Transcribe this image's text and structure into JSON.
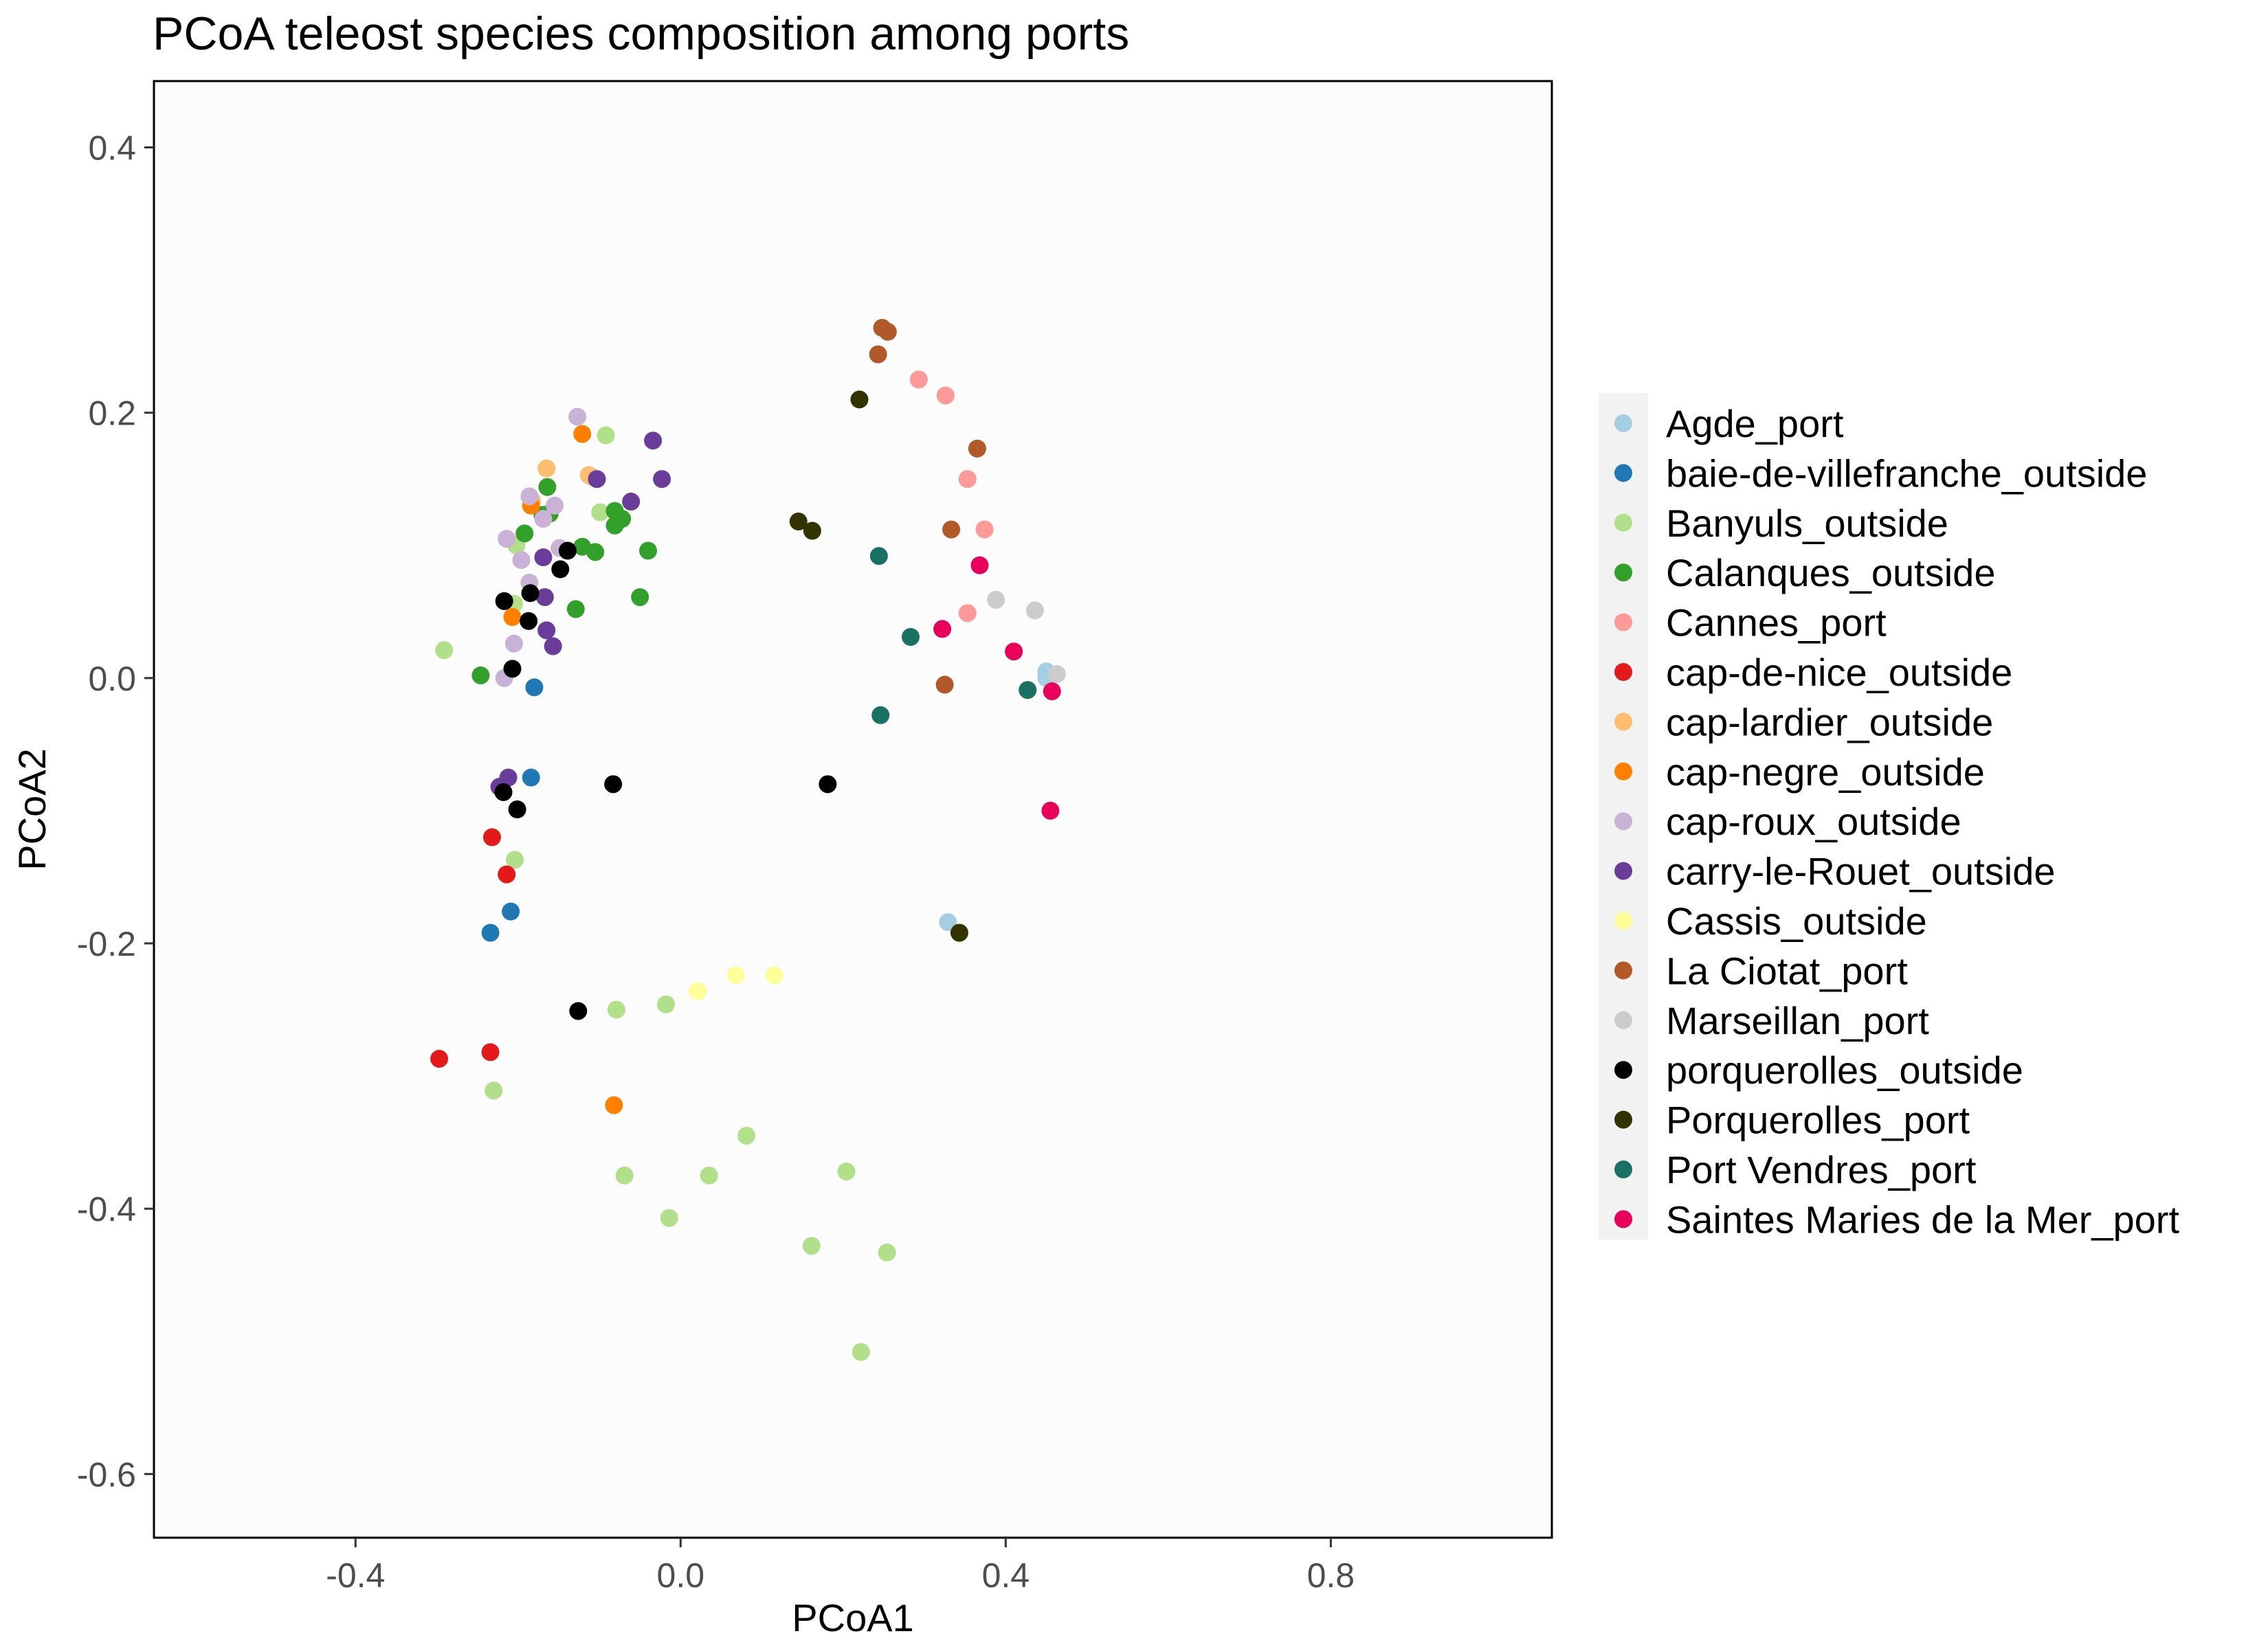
{
  "chart_data": {
    "type": "scatter",
    "title": "PCoA teleost species composition among ports",
    "xlabel": "PCoA1",
    "ylabel": "PCoA2",
    "xlim": [
      -0.648,
      1.072
    ],
    "ylim": [
      -0.648,
      0.45
    ],
    "x_ticks": [
      -0.4,
      0.0,
      0.4,
      0.8
    ],
    "x_tick_labels": [
      "-0.4",
      "0.0",
      "0.4",
      "0.8"
    ],
    "y_ticks": [
      0.4,
      0.2,
      0.0,
      -0.2,
      -0.4,
      -0.6
    ],
    "y_tick_labels": [
      "0.4",
      "0.2",
      "0.0",
      "-0.2",
      "-0.4",
      "-0.6"
    ],
    "grid": false,
    "legend_position": "right",
    "series": [
      {
        "name": "Agde_port",
        "color": "#a6cee3",
        "points": [
          [
            0.329,
            -0.184
          ],
          [
            0.45,
            0.005
          ],
          [
            0.45,
            0.0
          ]
        ]
      },
      {
        "name": "baie-de-villefranche_outside",
        "color": "#1f78b4",
        "points": [
          [
            -0.18,
            -0.007
          ],
          [
            -0.184,
            -0.075
          ],
          [
            -0.234,
            -0.192
          ],
          [
            -0.209,
            -0.176
          ]
        ]
      },
      {
        "name": "Banyuls_outside",
        "color": "#b2df8a",
        "points": [
          [
            -0.291,
            0.021
          ],
          [
            -0.205,
            0.056
          ],
          [
            -0.202,
            0.1
          ],
          [
            -0.11,
            0.152
          ],
          [
            -0.099,
            0.125
          ],
          [
            -0.092,
            0.183
          ],
          [
            -0.204,
            -0.137
          ],
          [
            -0.23,
            -0.311
          ],
          [
            -0.079,
            -0.25
          ],
          [
            -0.018,
            -0.246
          ],
          [
            -0.069,
            -0.375
          ],
          [
            -0.014,
            -0.407
          ],
          [
            0.035,
            -0.375
          ],
          [
            0.081,
            -0.345
          ],
          [
            0.204,
            -0.372
          ],
          [
            0.161,
            -0.428
          ],
          [
            0.254,
            -0.433
          ],
          [
            0.222,
            -0.508
          ]
        ]
      },
      {
        "name": "Calanques_outside",
        "color": "#33a02c",
        "points": [
          [
            -0.246,
            0.002
          ],
          [
            -0.192,
            0.109
          ],
          [
            -0.164,
            0.144
          ],
          [
            -0.17,
            0.123
          ],
          [
            -0.161,
            0.124
          ],
          [
            -0.121,
            0.099
          ],
          [
            -0.105,
            0.095
          ],
          [
            -0.081,
            0.126
          ],
          [
            -0.081,
            0.115
          ],
          [
            -0.072,
            0.12
          ],
          [
            -0.04,
            0.096
          ],
          [
            -0.05,
            0.061
          ],
          [
            -0.129,
            0.052
          ]
        ]
      },
      {
        "name": "Cannes_port",
        "color": "#fb9a99",
        "points": [
          [
            0.293,
            0.225
          ],
          [
            0.326,
            0.213
          ],
          [
            0.353,
            0.15
          ],
          [
            0.374,
            0.112
          ],
          [
            0.353,
            0.049
          ]
        ]
      },
      {
        "name": "cap-de-nice_outside",
        "color": "#e31a1c",
        "points": [
          [
            -0.232,
            -0.12
          ],
          [
            -0.214,
            -0.148
          ],
          [
            -0.297,
            -0.287
          ],
          [
            -0.234,
            -0.282
          ]
        ]
      },
      {
        "name": "cap-lardier_outside",
        "color": "#fdbf6f",
        "points": [
          [
            -0.165,
            0.158
          ],
          [
            -0.183,
            0.134
          ],
          [
            -0.113,
            0.153
          ]
        ]
      },
      {
        "name": "cap-negre_outside",
        "color": "#ff7f00",
        "points": [
          [
            -0.121,
            0.184
          ],
          [
            -0.184,
            0.13
          ],
          [
            -0.207,
            0.046
          ],
          [
            -0.082,
            -0.322
          ]
        ]
      },
      {
        "name": "cap-roux_outside",
        "color": "#cab2d6",
        "points": [
          [
            -0.127,
            0.197
          ],
          [
            -0.186,
            0.137
          ],
          [
            -0.169,
            0.12
          ],
          [
            -0.155,
            0.13
          ],
          [
            -0.214,
            0.105
          ],
          [
            -0.196,
            0.089
          ],
          [
            -0.149,
            0.098
          ],
          [
            -0.186,
            0.072
          ],
          [
            -0.217,
            0.0
          ],
          [
            -0.205,
            0.026
          ]
        ]
      },
      {
        "name": "carry-le-Rouet_outside",
        "color": "#6a3d9a",
        "points": [
          [
            -0.103,
            0.15
          ],
          [
            -0.061,
            0.133
          ],
          [
            -0.034,
            0.179
          ],
          [
            -0.023,
            0.15
          ],
          [
            -0.169,
            0.091
          ],
          [
            -0.167,
            0.061
          ],
          [
            -0.165,
            0.036
          ],
          [
            -0.157,
            0.024
          ],
          [
            -0.212,
            -0.075
          ],
          [
            -0.223,
            -0.082
          ]
        ]
      },
      {
        "name": "Cassis_outside",
        "color": "#ffff99",
        "points": [
          [
            0.021,
            -0.236
          ],
          [
            0.068,
            -0.224
          ],
          [
            0.115,
            -0.224
          ]
        ]
      },
      {
        "name": "La Ciotat_port",
        "color": "#b15928",
        "points": [
          [
            0.248,
            0.264
          ],
          [
            0.255,
            0.261
          ],
          [
            0.243,
            0.244
          ],
          [
            0.365,
            0.173
          ],
          [
            0.333,
            0.112
          ],
          [
            0.325,
            -0.005
          ]
        ]
      },
      {
        "name": "Marseillan_port",
        "color": "#cccccc",
        "points": [
          [
            0.388,
            0.059
          ],
          [
            0.436,
            0.051
          ],
          [
            0.463,
            0.003
          ]
        ]
      },
      {
        "name": "porquerolles_outside",
        "color": "#000000",
        "points": [
          [
            -0.217,
            0.058
          ],
          [
            -0.185,
            0.064
          ],
          [
            -0.187,
            0.043
          ],
          [
            -0.148,
            0.082
          ],
          [
            -0.139,
            0.096
          ],
          [
            -0.207,
            0.007
          ],
          [
            -0.218,
            -0.086
          ],
          [
            -0.201,
            -0.099
          ],
          [
            -0.083,
            -0.08
          ],
          [
            -0.126,
            -0.251
          ],
          [
            0.181,
            -0.08
          ]
        ]
      },
      {
        "name": "Porquerolles_port",
        "color": "#333300",
        "points": [
          [
            0.22,
            0.21
          ],
          [
            0.145,
            0.118
          ],
          [
            0.162,
            0.111
          ],
          [
            0.343,
            -0.192
          ]
        ]
      },
      {
        "name": "Port Vendres_port",
        "color": "#1b7064",
        "points": [
          [
            0.244,
            0.092
          ],
          [
            0.283,
            0.031
          ],
          [
            0.246,
            -0.028
          ],
          [
            0.427,
            -0.009
          ]
        ]
      },
      {
        "name": "Saintes Maries de la Mer_port",
        "color": "#e8005a",
        "points": [
          [
            0.368,
            0.085
          ],
          [
            0.322,
            0.037
          ],
          [
            0.41,
            0.02
          ],
          [
            0.457,
            -0.01
          ],
          [
            0.455,
            -0.1
          ]
        ]
      }
    ]
  }
}
